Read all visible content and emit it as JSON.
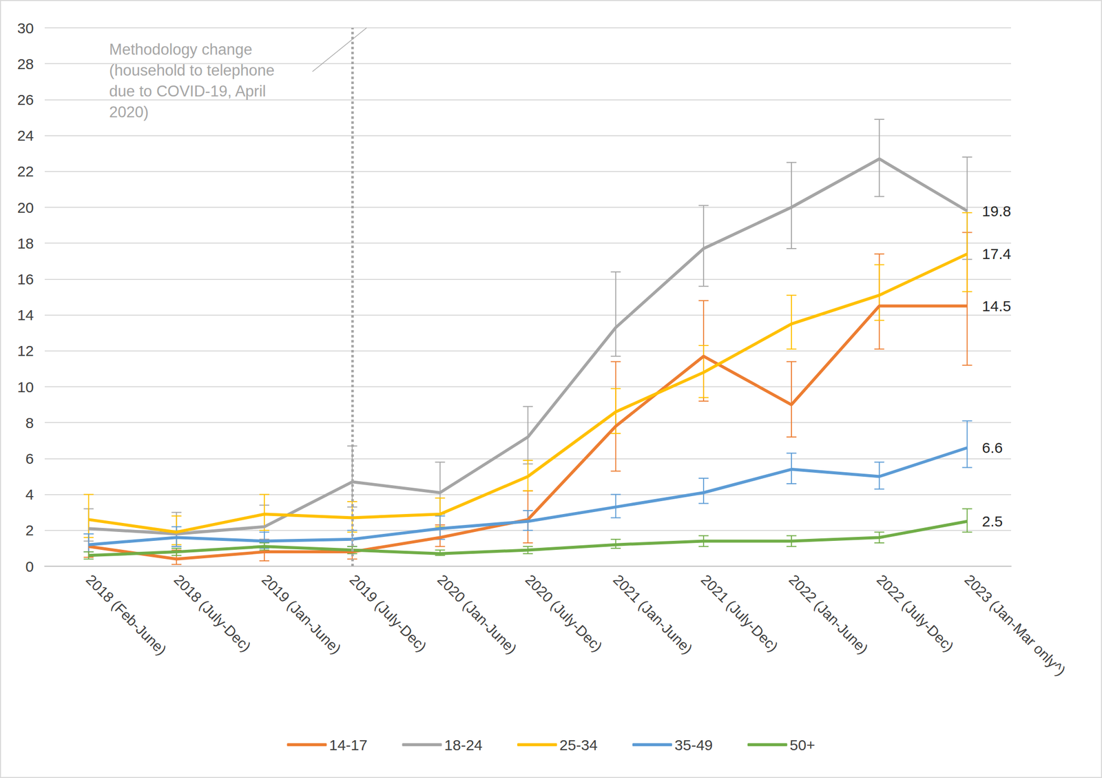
{
  "chart_data": {
    "type": "line",
    "categories": [
      "2018 (Feb-June)",
      "2018 (July-Dec)",
      "2019 (Jan-June)",
      "2019 (July-Dec)",
      "2020 (Jan-June)",
      "2020 (July-Dec)",
      "2021 (Jan-June)",
      "2021 (July-Dec)",
      "2022 (Jan-June)",
      "2022 (July-Dec)",
      "2023 (Jan-Mar only^)"
    ],
    "ylim": [
      0,
      30
    ],
    "yticks": [
      0,
      2,
      4,
      6,
      8,
      10,
      12,
      14,
      16,
      18,
      20,
      22,
      24,
      26,
      28,
      30
    ],
    "grid": true,
    "legend": "bottom",
    "annotations": [
      {
        "text": "Methodology change\n(household to telephone\ndue to COVID-19, April\n2020)",
        "x": "2019 (July-Dec)"
      }
    ],
    "series": [
      {
        "name": "14-17",
        "color": "#ED7D31",
        "values": [
          1.1,
          0.4,
          0.8,
          0.8,
          1.6,
          2.6,
          7.8,
          11.7,
          9.0,
          14.5,
          14.5
        ],
        "errors": [
          [
            0.5,
            1.8
          ],
          [
            0.1,
            0.9
          ],
          [
            0.3,
            1.5
          ],
          [
            0.4,
            1.5
          ],
          [
            1.1,
            2.3
          ],
          [
            1.3,
            4.2
          ],
          [
            5.3,
            11.4
          ],
          [
            9.2,
            14.8
          ],
          [
            7.2,
            11.4
          ],
          [
            12.1,
            17.4
          ],
          [
            11.2,
            18.6
          ]
        ],
        "value_labels": [
          null,
          null,
          null,
          null,
          null,
          null,
          null,
          null,
          null,
          null,
          "14.5"
        ]
      },
      {
        "name": "18-24",
        "color": "#A5A5A5",
        "values": [
          2.1,
          1.8,
          2.2,
          4.7,
          4.1,
          7.2,
          13.3,
          17.7,
          20.0,
          22.7,
          19.8
        ],
        "errors": [
          [
            1.4,
            3.2
          ],
          [
            1.1,
            3.0
          ],
          [
            1.5,
            3.4
          ],
          [
            3.3,
            6.7
          ],
          [
            2.9,
            5.8
          ],
          [
            5.7,
            8.9
          ],
          [
            11.7,
            16.4
          ],
          [
            15.6,
            20.1
          ],
          [
            17.7,
            22.5
          ],
          [
            20.6,
            24.9
          ],
          [
            17.1,
            22.8
          ]
        ],
        "value_labels": [
          null,
          null,
          null,
          null,
          null,
          null,
          null,
          null,
          null,
          null,
          "19.8"
        ]
      },
      {
        "name": "25-34",
        "color": "#FFC000",
        "values": [
          2.6,
          1.9,
          2.9,
          2.7,
          2.9,
          5.0,
          8.6,
          10.8,
          13.5,
          15.1,
          17.4
        ],
        "errors": [
          [
            1.6,
            4.0
          ],
          [
            1.2,
            2.8
          ],
          [
            2.0,
            4.0
          ],
          [
            1.9,
            3.6
          ],
          [
            2.2,
            3.8
          ],
          [
            4.2,
            5.9
          ],
          [
            7.4,
            9.9
          ],
          [
            9.4,
            12.3
          ],
          [
            12.1,
            15.1
          ],
          [
            13.7,
            16.8
          ],
          [
            15.3,
            19.7
          ]
        ],
        "value_labels": [
          null,
          null,
          null,
          null,
          null,
          null,
          null,
          null,
          null,
          null,
          "17.4"
        ]
      },
      {
        "name": "35-49",
        "color": "#5B9BD5",
        "values": [
          1.2,
          1.6,
          1.4,
          1.5,
          2.1,
          2.5,
          3.3,
          4.1,
          5.4,
          5.0,
          6.6
        ],
        "errors": [
          [
            0.8,
            1.8
          ],
          [
            1.1,
            2.2
          ],
          [
            1.0,
            1.9
          ],
          [
            1.1,
            2.0
          ],
          [
            1.5,
            2.8
          ],
          [
            2.0,
            3.1
          ],
          [
            2.7,
            4.0
          ],
          [
            3.5,
            4.9
          ],
          [
            4.6,
            6.3
          ],
          [
            4.3,
            5.8
          ],
          [
            5.5,
            8.1
          ]
        ],
        "value_labels": [
          null,
          null,
          null,
          null,
          null,
          null,
          null,
          null,
          null,
          null,
          "6.6"
        ]
      },
      {
        "name": "50+",
        "color": "#70AD47",
        "values": [
          0.6,
          0.8,
          1.1,
          0.9,
          0.7,
          0.9,
          1.2,
          1.4,
          1.4,
          1.6,
          2.5
        ],
        "errors": [
          [
            0.4,
            0.8
          ],
          [
            0.6,
            1.0
          ],
          [
            0.9,
            1.3
          ],
          [
            0.7,
            1.1
          ],
          [
            0.6,
            0.9
          ],
          [
            0.7,
            1.1
          ],
          [
            1.0,
            1.5
          ],
          [
            1.1,
            1.7
          ],
          [
            1.1,
            1.7
          ],
          [
            1.3,
            1.9
          ],
          [
            1.9,
            3.2
          ]
        ],
        "value_labels": [
          null,
          null,
          null,
          null,
          null,
          null,
          null,
          null,
          null,
          null,
          "2.5"
        ]
      }
    ]
  }
}
